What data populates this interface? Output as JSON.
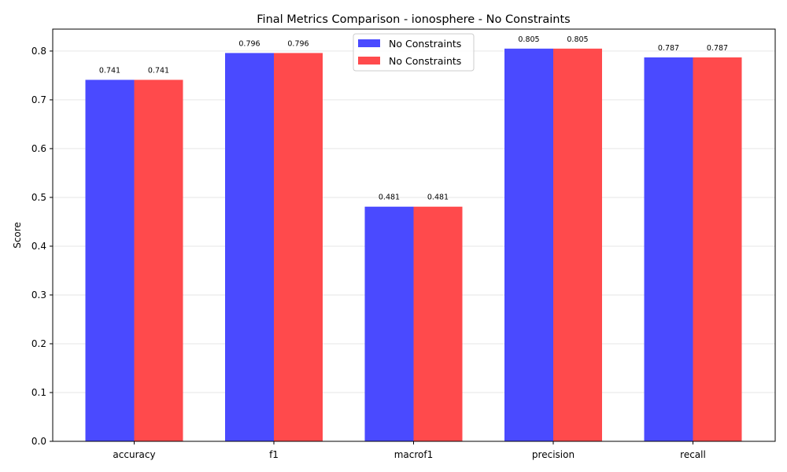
{
  "chart_data": {
    "type": "bar",
    "title": "Final Metrics Comparison - ionosphere - No Constraints",
    "xlabel": "",
    "ylabel": "Score",
    "categories": [
      "accuracy",
      "f1",
      "macrof1",
      "precision",
      "recall"
    ],
    "series": [
      {
        "name": "No Constraints",
        "color": "#4a4aff",
        "values": [
          0.741,
          0.796,
          0.481,
          0.805,
          0.787
        ],
        "value_labels": [
          "0.741",
          "0.796",
          "0.481",
          "0.805",
          "0.787"
        ]
      },
      {
        "name": "No Constraints",
        "color": "#ff4a4c",
        "values": [
          0.741,
          0.796,
          0.481,
          0.805,
          0.787
        ],
        "value_labels": [
          "0.741",
          "0.796",
          "0.481",
          "0.805",
          "0.787"
        ]
      }
    ],
    "ylim": [
      0,
      0.845
    ],
    "yticks": [
      0.0,
      0.1,
      0.2,
      0.3,
      0.4,
      0.5,
      0.6,
      0.7,
      0.8
    ],
    "ytick_labels": [
      "0.0",
      "0.1",
      "0.2",
      "0.3",
      "0.4",
      "0.5",
      "0.6",
      "0.7",
      "0.8"
    ],
    "grid": "y",
    "legend_position": "top-center"
  }
}
